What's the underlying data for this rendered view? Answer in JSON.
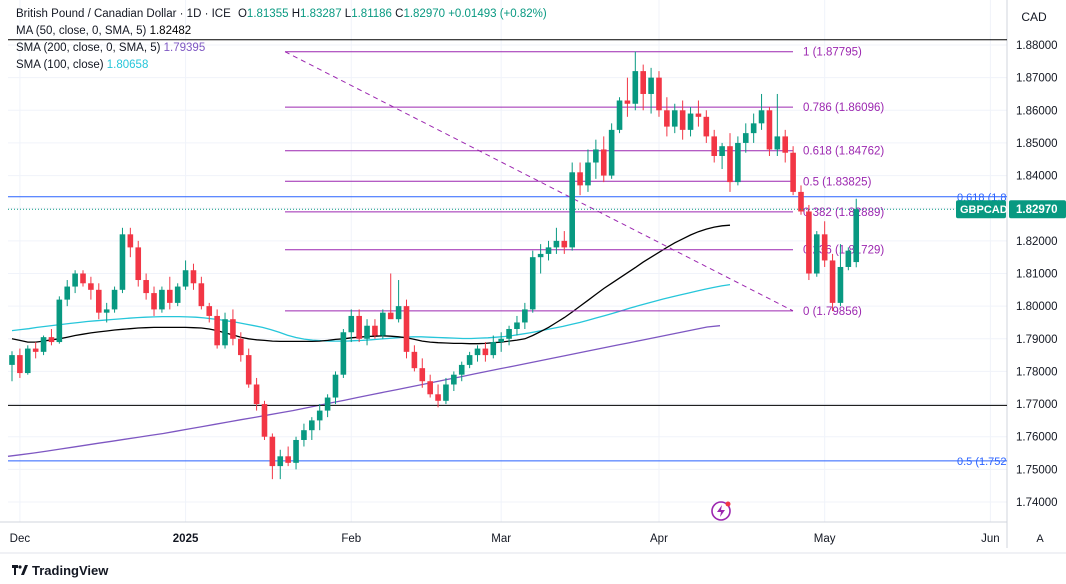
{
  "header": {
    "symbol_title": "British Pound / Canadian Dollar · 1D · ICE",
    "ohlc": {
      "o_label": "O",
      "o": "1.81355",
      "h_label": "H",
      "h": "1.83287",
      "l_label": "L",
      "l": "1.81186",
      "c_label": "C",
      "c": "1.82970",
      "change": "+0.01493 (+0.82%)"
    },
    "ma50": {
      "label": "MA (50, close, 0, SMA, 5)",
      "value": "1.82482"
    },
    "sma200": {
      "label": "SMA (200, close, 0, SMA, 5)",
      "value": "1.79395"
    },
    "sma100": {
      "label": "SMA (100, close)",
      "value": "1.80658"
    }
  },
  "currency": "CAD",
  "branding": "TradingView",
  "auto_scale": "A",
  "colors": {
    "up": "#089981",
    "down": "#f23645",
    "ma50": "#000000",
    "sma200": "#7e57c2",
    "sma100": "#26c6da",
    "fib": "#9c27b0",
    "hline_blue": "#2962ff",
    "price_tag": "#089981"
  },
  "chart_data": {
    "type": "candlestick",
    "y_axis": {
      "min": 1.735,
      "max": 1.885,
      "ticks": [
        "1.88000",
        "1.87000",
        "1.86000",
        "1.85000",
        "1.84000",
        "1.83000",
        "1.82000",
        "1.81000",
        "1.80000",
        "1.79000",
        "1.78000",
        "1.77000",
        "1.76000",
        "1.75000",
        "1.74000"
      ]
    },
    "x_ticks": [
      "Dec",
      "2025",
      "Feb",
      "Mar",
      "Apr",
      "May",
      "Jun"
    ],
    "last_price_tag": {
      "symbol": "GBPCAD",
      "price": "1.82970"
    },
    "fibonacci": [
      {
        "level": "1",
        "price": 1.87795,
        "label": "1 (1.87795)"
      },
      {
        "level": "0.786",
        "price": 1.86096,
        "label": "0.786 (1.86096)"
      },
      {
        "level": "0.618",
        "price": 1.84762,
        "label": "0.618 (1.84762)"
      },
      {
        "level": "0.5",
        "price": 1.83825,
        "label": "0.5 (1.83825)"
      },
      {
        "level": "0.382",
        "price": 1.82889,
        "label": "0.382 (1.82889)"
      },
      {
        "level": "0.236",
        "price": 1.81729,
        "label": "0.236 (1.81729)"
      },
      {
        "level": "0",
        "price": 1.79856,
        "label": "0 (1.79856)"
      }
    ],
    "horizontal_lines": [
      {
        "price": 1.8816,
        "color": "#000000",
        "label": ""
      },
      {
        "price": 1.8335,
        "color": "#2962ff",
        "label": "0.618 (1.8"
      },
      {
        "price": 1.7696,
        "color": "#000000",
        "label": ""
      },
      {
        "price": 1.7526,
        "color": "#2962ff",
        "label": "0.5 (1.752"
      }
    ],
    "candles": [
      [
        1.782,
        1.7862,
        1.777,
        1.785
      ],
      [
        1.785,
        1.787,
        1.778,
        1.7795
      ],
      [
        1.7795,
        1.788,
        1.779,
        1.787
      ],
      [
        1.787,
        1.789,
        1.784,
        1.786
      ],
      [
        1.786,
        1.791,
        1.785,
        1.7905
      ],
      [
        1.7905,
        1.793,
        1.788,
        1.789
      ],
      [
        1.789,
        1.803,
        1.7885,
        1.802
      ],
      [
        1.802,
        1.808,
        1.8,
        1.806
      ],
      [
        1.806,
        1.811,
        1.804,
        1.81
      ],
      [
        1.81,
        1.811,
        1.806,
        1.807
      ],
      [
        1.807,
        1.809,
        1.802,
        1.805
      ],
      [
        1.805,
        1.807,
        1.796,
        1.798
      ],
      [
        1.798,
        1.801,
        1.795,
        1.799
      ],
      [
        1.799,
        1.806,
        1.798,
        1.805
      ],
      [
        1.805,
        1.824,
        1.804,
        1.822
      ],
      [
        1.822,
        1.824,
        1.815,
        1.818
      ],
      [
        1.818,
        1.82,
        1.806,
        1.808
      ],
      [
        1.808,
        1.81,
        1.802,
        1.804
      ],
      [
        1.804,
        1.806,
        1.797,
        1.799
      ],
      [
        1.799,
        1.806,
        1.798,
        1.805
      ],
      [
        1.805,
        1.809,
        1.799,
        1.801
      ],
      [
        1.801,
        1.807,
        1.8,
        1.806
      ],
      [
        1.806,
        1.814,
        1.805,
        1.811
      ],
      [
        1.811,
        1.813,
        1.805,
        1.807
      ],
      [
        1.807,
        1.809,
        1.799,
        1.8
      ],
      [
        1.8,
        1.801,
        1.795,
        1.797
      ],
      [
        1.797,
        1.799,
        1.787,
        1.788
      ],
      [
        1.788,
        1.798,
        1.787,
        1.796
      ],
      [
        1.796,
        1.799,
        1.788,
        1.79
      ],
      [
        1.79,
        1.792,
        1.783,
        1.785
      ],
      [
        1.785,
        1.787,
        1.775,
        1.776
      ],
      [
        1.776,
        1.778,
        1.768,
        1.77
      ],
      [
        1.77,
        1.771,
        1.759,
        1.76
      ],
      [
        1.76,
        1.761,
        1.747,
        1.751
      ],
      [
        1.751,
        1.756,
        1.747,
        1.754
      ],
      [
        1.754,
        1.757,
        1.751,
        1.752
      ],
      [
        1.752,
        1.76,
        1.75,
        1.759
      ],
      [
        1.759,
        1.764,
        1.757,
        1.762
      ],
      [
        1.762,
        1.766,
        1.759,
        1.765
      ],
      [
        1.765,
        1.77,
        1.762,
        1.768
      ],
      [
        1.768,
        1.773,
        1.766,
        1.772
      ],
      [
        1.772,
        1.78,
        1.77,
        1.779
      ],
      [
        1.779,
        1.793,
        1.778,
        1.792
      ],
      [
        1.792,
        1.799,
        1.789,
        1.797
      ],
      [
        1.797,
        1.799,
        1.789,
        1.79
      ],
      [
        1.79,
        1.796,
        1.788,
        1.794
      ],
      [
        1.794,
        1.796,
        1.79,
        1.791
      ],
      [
        1.791,
        1.799,
        1.79,
        1.798
      ],
      [
        1.798,
        1.81,
        1.797,
        1.796
      ],
      [
        1.796,
        1.808,
        1.795,
        1.8
      ],
      [
        1.8,
        1.802,
        1.784,
        1.786
      ],
      [
        1.786,
        1.788,
        1.78,
        1.781
      ],
      [
        1.781,
        1.784,
        1.775,
        1.777
      ],
      [
        1.777,
        1.779,
        1.772,
        1.773
      ],
      [
        1.773,
        1.776,
        1.769,
        1.771
      ],
      [
        1.771,
        1.778,
        1.77,
        1.776
      ],
      [
        1.776,
        1.78,
        1.774,
        1.779
      ],
      [
        1.779,
        1.783,
        1.777,
        1.782
      ],
      [
        1.782,
        1.786,
        1.781,
        1.785
      ],
      [
        1.785,
        1.788,
        1.783,
        1.787
      ],
      [
        1.787,
        1.789,
        1.783,
        1.785
      ],
      [
        1.785,
        1.791,
        1.784,
        1.789
      ],
      [
        1.789,
        1.792,
        1.786,
        1.79
      ],
      [
        1.79,
        1.794,
        1.788,
        1.793
      ],
      [
        1.793,
        1.797,
        1.791,
        1.795
      ],
      [
        1.795,
        1.801,
        1.793,
        1.799
      ],
      [
        1.799,
        1.817,
        1.798,
        1.815
      ],
      [
        1.815,
        1.819,
        1.81,
        1.816
      ],
      [
        1.816,
        1.82,
        1.814,
        1.818
      ],
      [
        1.818,
        1.824,
        1.816,
        1.82
      ],
      [
        1.82,
        1.823,
        1.816,
        1.818
      ],
      [
        1.818,
        1.844,
        1.817,
        1.841
      ],
      [
        1.841,
        1.844,
        1.834,
        1.837
      ],
      [
        1.837,
        1.848,
        1.835,
        1.844
      ],
      [
        1.844,
        1.851,
        1.839,
        1.848
      ],
      [
        1.848,
        1.852,
        1.838,
        1.84
      ],
      [
        1.84,
        1.856,
        1.839,
        1.854
      ],
      [
        1.854,
        1.864,
        1.853,
        1.863
      ],
      [
        1.863,
        1.87,
        1.858,
        1.862
      ],
      [
        1.862,
        1.878,
        1.86,
        1.872
      ],
      [
        1.872,
        1.874,
        1.86,
        1.865
      ],
      [
        1.865,
        1.873,
        1.859,
        1.87
      ],
      [
        1.87,
        1.872,
        1.858,
        1.86
      ],
      [
        1.86,
        1.864,
        1.852,
        1.855
      ],
      [
        1.855,
        1.862,
        1.853,
        1.86
      ],
      [
        1.86,
        1.863,
        1.851,
        1.854
      ],
      [
        1.854,
        1.861,
        1.852,
        1.859
      ],
      [
        1.859,
        1.863,
        1.855,
        1.858
      ],
      [
        1.858,
        1.86,
        1.85,
        1.852
      ],
      [
        1.852,
        1.854,
        1.844,
        1.846
      ],
      [
        1.846,
        1.85,
        1.842,
        1.849
      ],
      [
        1.849,
        1.853,
        1.835,
        1.838
      ],
      [
        1.838,
        1.852,
        1.837,
        1.85
      ],
      [
        1.85,
        1.856,
        1.847,
        1.853
      ],
      [
        1.853,
        1.859,
        1.85,
        1.856
      ],
      [
        1.856,
        1.865,
        1.854,
        1.86
      ],
      [
        1.86,
        1.861,
        1.846,
        1.848
      ],
      [
        1.848,
        1.865,
        1.846,
        1.852
      ],
      [
        1.852,
        1.854,
        1.844,
        1.847
      ],
      [
        1.847,
        1.849,
        1.834,
        1.835
      ],
      [
        1.835,
        1.837,
        1.828,
        1.829
      ],
      [
        1.829,
        1.831,
        1.808,
        1.81
      ],
      [
        1.81,
        1.823,
        1.809,
        1.822
      ],
      [
        1.822,
        1.826,
        1.812,
        1.814
      ],
      [
        1.814,
        1.816,
        1.7985,
        1.801
      ],
      [
        1.801,
        1.819,
        1.8,
        1.812
      ],
      [
        1.812,
        1.818,
        1.811,
        1.817
      ],
      [
        1.8135,
        1.8329,
        1.8119,
        1.8297
      ]
    ],
    "ma50": [
      1.79,
      1.7895,
      1.789,
      1.789,
      1.7893,
      1.7897,
      1.79,
      1.7905,
      1.791,
      1.7914,
      1.7918,
      1.7921,
      1.7924,
      1.7927,
      1.7929,
      1.7931,
      1.7933,
      1.7934,
      1.7935,
      1.7935,
      1.7935,
      1.7935,
      1.7935,
      1.7934,
      1.7933,
      1.793,
      1.7925,
      1.7918,
      1.7912,
      1.7905,
      1.79,
      1.7897,
      1.7895,
      1.7893,
      1.7892,
      1.7892,
      1.7892,
      1.7892,
      1.7892,
      1.7893,
      1.7895,
      1.7898,
      1.79,
      1.7903,
      1.7905,
      1.7907,
      1.7908,
      1.7909,
      1.7908,
      1.7906,
      1.7903,
      1.7898,
      1.7893,
      1.789,
      1.7888,
      1.7887,
      1.7886,
      1.7886,
      1.7885,
      1.7885,
      1.7886,
      1.7888,
      1.789,
      1.7893,
      1.7896,
      1.79,
      1.791,
      1.7922,
      1.7935,
      1.795,
      1.7965,
      1.7982,
      1.8,
      1.8018,
      1.8036,
      1.8054,
      1.807,
      1.8086,
      1.8102,
      1.8118,
      1.8135,
      1.815,
      1.8165,
      1.818,
      1.8194,
      1.8206,
      1.8218,
      1.8228,
      1.8236,
      1.8242,
      1.8246,
      1.8248
    ],
    "sma100": [
      1.7925,
      1.7928,
      1.7931,
      1.7935,
      1.7938,
      1.7941,
      1.7944,
      1.7947,
      1.795,
      1.7953,
      1.7955,
      1.7957,
      1.7959,
      1.7961,
      1.7963,
      1.7965,
      1.7966,
      1.7967,
      1.7968,
      1.7968,
      1.7968,
      1.7967,
      1.7966,
      1.7964,
      1.7961,
      1.7958,
      1.7954,
      1.795,
      1.7945,
      1.794,
      1.7935,
      1.7928,
      1.792,
      1.7911,
      1.7904,
      1.7899,
      1.7896,
      1.7894,
      1.7893,
      1.7893,
      1.7893,
      1.7894,
      1.7895,
      1.7897,
      1.7899,
      1.7901,
      1.7903,
      1.7905,
      1.7906,
      1.7906,
      1.7905,
      1.7904,
      1.7903,
      1.7902,
      1.7901,
      1.7901,
      1.7902,
      1.7903,
      1.7905,
      1.7907,
      1.791,
      1.7914,
      1.7918,
      1.7923,
      1.7928,
      1.7933,
      1.7938,
      1.7944,
      1.795,
      1.7957,
      1.7964,
      1.7971,
      1.7978,
      1.7986,
      1.7994,
      1.8001,
      1.8008,
      1.8015,
      1.8022,
      1.8028,
      1.8034,
      1.804,
      1.8046,
      1.8052,
      1.8057,
      1.8062,
      1.8066
    ],
    "sma200": [
      1.754,
      1.7545,
      1.755,
      1.7556,
      1.7562,
      1.7568,
      1.7574,
      1.758,
      1.7586,
      1.7592,
      1.7598,
      1.7604,
      1.761,
      1.7617,
      1.7624,
      1.7631,
      1.7638,
      1.7645,
      1.7652,
      1.7659,
      1.7666,
      1.7673,
      1.768,
      1.7688,
      1.7696,
      1.7704,
      1.7712,
      1.772,
      1.7728,
      1.7736,
      1.7744,
      1.7752,
      1.776,
      1.7768,
      1.7776,
      1.7784,
      1.7792,
      1.78,
      1.7808,
      1.7816,
      1.7824,
      1.7832,
      1.784,
      1.7848,
      1.7856,
      1.7864,
      1.7872,
      1.788,
      1.7888,
      1.7896,
      1.7904,
      1.7912,
      1.792,
      1.7928,
      1.7936,
      1.794
    ]
  }
}
